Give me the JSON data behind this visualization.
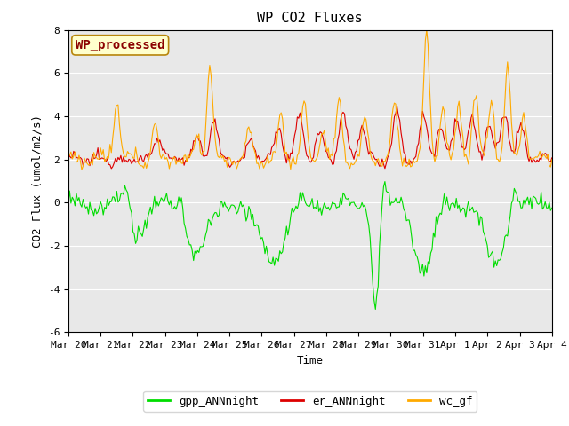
{
  "title": "WP CO2 Fluxes",
  "xlabel": "Time",
  "ylabel": "CO2 Flux (umol/m2/s)",
  "ylim": [
    -6,
    8
  ],
  "yticks": [
    -6,
    -4,
    -2,
    0,
    2,
    4,
    6,
    8
  ],
  "bg_color": "#e8e8e8",
  "fig_bg": "#ffffff",
  "grid_color": "#ffffff",
  "line_colors": {
    "gpp": "#00dd00",
    "er": "#dd0000",
    "wc": "#ffaa00"
  },
  "legend_labels": [
    "gpp_ANNnight",
    "er_ANNnight",
    "wc_gf"
  ],
  "watermark_text": "WP_processed",
  "watermark_color": "#8b0000",
  "watermark_bg": "#ffffcc",
  "watermark_edge": "#b8860b",
  "xtick_labels": [
    "Mar 20",
    "Mar 21",
    "Mar 22",
    "Mar 23",
    "Mar 24",
    "Mar 25",
    "Mar 26",
    "Mar 27",
    "Mar 28",
    "Mar 29",
    "Mar 30",
    "Mar 31",
    "Apr 1",
    "Apr 2",
    "Apr 3",
    "Apr 4"
  ],
  "font_family": "monospace",
  "title_fontsize": 11,
  "tick_fontsize": 8,
  "label_fontsize": 9,
  "legend_fontsize": 9,
  "linewidth": 0.8
}
